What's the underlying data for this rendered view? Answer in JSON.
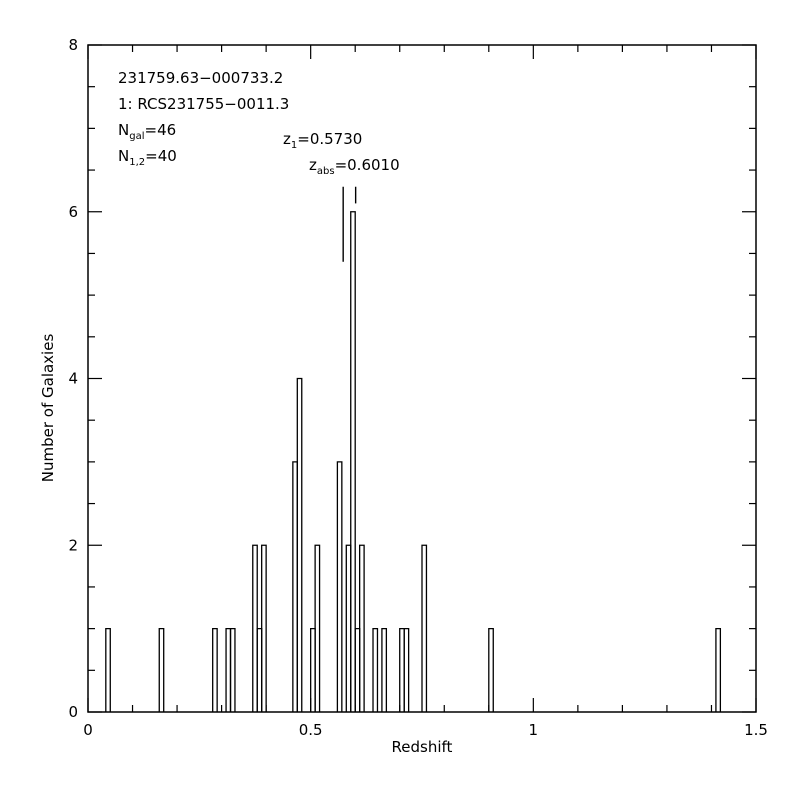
{
  "chart_data": {
    "type": "bar",
    "style": "step-histogram",
    "xlabel": "Redshift",
    "ylabel": "Number of Galaxies",
    "xlim": [
      0,
      1.5
    ],
    "ylim": [
      0,
      8
    ],
    "grid": false,
    "bin_width": 0.01,
    "x_ticks": [
      {
        "value": 0,
        "label": "0"
      },
      {
        "value": 0.5,
        "label": "0.5"
      },
      {
        "value": 1,
        "label": "1"
      },
      {
        "value": 1.5,
        "label": "1.5"
      }
    ],
    "y_ticks": [
      {
        "value": 0,
        "label": "0"
      },
      {
        "value": 2,
        "label": "2"
      },
      {
        "value": 4,
        "label": "4"
      },
      {
        "value": 6,
        "label": "6"
      },
      {
        "value": 8,
        "label": "8"
      }
    ],
    "bins": [
      {
        "x": 0.045,
        "count": 1
      },
      {
        "x": 0.165,
        "count": 1
      },
      {
        "x": 0.285,
        "count": 1
      },
      {
        "x": 0.315,
        "count": 1
      },
      {
        "x": 0.325,
        "count": 1
      },
      {
        "x": 0.375,
        "count": 2
      },
      {
        "x": 0.385,
        "count": 1
      },
      {
        "x": 0.395,
        "count": 2
      },
      {
        "x": 0.465,
        "count": 3
      },
      {
        "x": 0.475,
        "count": 4
      },
      {
        "x": 0.505,
        "count": 1
      },
      {
        "x": 0.515,
        "count": 2
      },
      {
        "x": 0.565,
        "count": 3
      },
      {
        "x": 0.585,
        "count": 2
      },
      {
        "x": 0.595,
        "count": 6
      },
      {
        "x": 0.605,
        "count": 1
      },
      {
        "x": 0.615,
        "count": 2
      },
      {
        "x": 0.645,
        "count": 1
      },
      {
        "x": 0.665,
        "count": 1
      },
      {
        "x": 0.705,
        "count": 1
      },
      {
        "x": 0.715,
        "count": 1
      },
      {
        "x": 0.755,
        "count": 2
      },
      {
        "x": 0.905,
        "count": 1
      },
      {
        "x": 1.415,
        "count": 1
      }
    ],
    "markers": [
      {
        "name": "z1",
        "x": 0.573,
        "from": 5.4,
        "to": 6.3,
        "style": "solid"
      },
      {
        "name": "zabs",
        "x": 0.601,
        "from": 6.1,
        "to": 6.3,
        "style": "solid"
      }
    ],
    "annotations": {
      "line1": "231759.63−000733.2",
      "line2": "1: RCS231755−0011.3",
      "ngal": {
        "main": "N",
        "sub": "gal",
        "rest": "=46"
      },
      "n12": {
        "main": "N",
        "sub": "1,2",
        "rest": "=40"
      },
      "z1": {
        "main": "z",
        "sub": "1",
        "rest": "=0.5730"
      },
      "zabs": {
        "main": "z",
        "sub": "abs",
        "rest": "=0.6010"
      }
    }
  }
}
